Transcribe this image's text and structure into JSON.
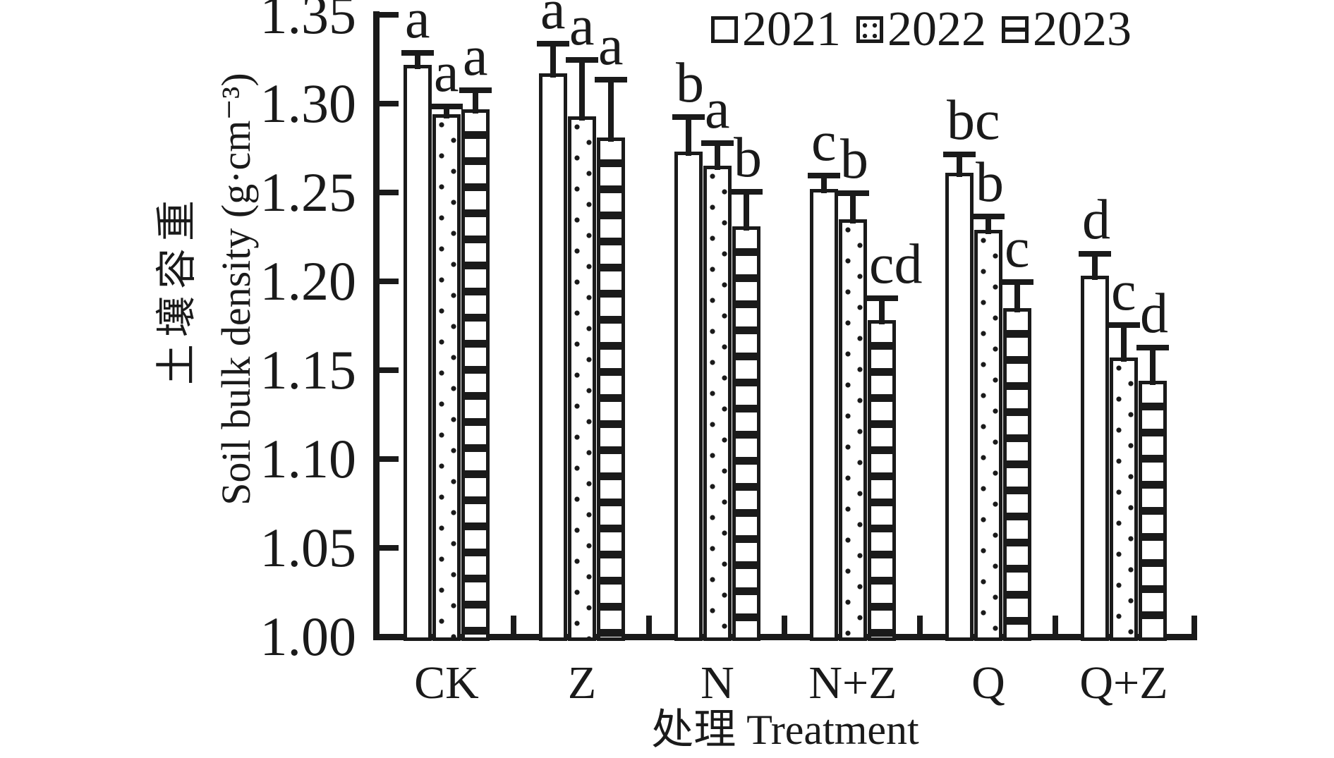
{
  "figure": {
    "background": "#ffffff",
    "ink_color": "#1a1a1a"
  },
  "chart_data": {
    "type": "bar",
    "title": "",
    "categories": [
      "CK",
      "Z",
      "N",
      "N+Z",
      "Q",
      "Q+Z"
    ],
    "xlabel": "处理 Treatment",
    "ylabel_cn": "土壤容重",
    "ylabel_en": "Soil bulk density (g·cm⁻³)",
    "ylim": [
      1.0,
      1.35
    ],
    "ytick_step": 0.05,
    "ytick_labels": [
      "1.00",
      "1.05",
      "1.10",
      "1.15",
      "1.20",
      "1.25",
      "1.30",
      "1.35"
    ],
    "grid": false,
    "legend_position": "top-right-inside",
    "series": [
      {
        "name": "2021",
        "pattern": "plain",
        "values": [
          1.322,
          1.317,
          1.273,
          1.252,
          1.261,
          1.203
        ],
        "errors": [
          0.005,
          0.015,
          0.018,
          0.006,
          0.009,
          0.011
        ],
        "sig_letters": [
          "a",
          "a",
          "b",
          "c",
          "bc",
          "d"
        ]
      },
      {
        "name": "2022",
        "pattern": "dots",
        "values": [
          1.294,
          1.293,
          1.265,
          1.235,
          1.229,
          1.157
        ],
        "errors": [
          0.003,
          0.03,
          0.011,
          0.013,
          0.006,
          0.017
        ],
        "sig_letters": [
          "a",
          "a",
          "a",
          "b",
          "b",
          "c"
        ]
      },
      {
        "name": "2023",
        "pattern": "hlines",
        "values": [
          1.297,
          1.281,
          1.231,
          1.178,
          1.185,
          1.144
        ],
        "errors": [
          0.009,
          0.031,
          0.018,
          0.011,
          0.013,
          0.017
        ],
        "sig_letters": [
          "a",
          "a",
          "b",
          "cd",
          "c",
          "d"
        ]
      }
    ]
  }
}
